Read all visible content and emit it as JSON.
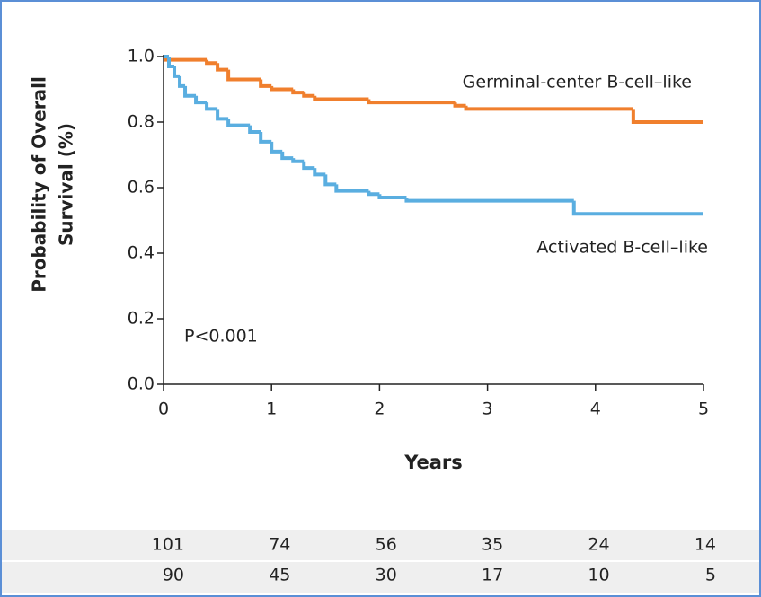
{
  "chart_data": {
    "type": "step",
    "ylabel": [
      "Probability of Overall",
      "Survival (%)"
    ],
    "xlabel": "Years",
    "annotation": "P<0.001",
    "xlim": [
      0,
      5
    ],
    "ylim": [
      0,
      1
    ],
    "xticks": [
      0,
      1,
      2,
      3,
      4,
      5
    ],
    "yticks": [
      {
        "value": 0,
        "label": "0.0"
      },
      0.2,
      0.4,
      0.6,
      0.8,
      {
        "value": 1,
        "label": "1.0"
      }
    ],
    "series": [
      {
        "name": "Germinal-center B-cell–like",
        "color": "#f07f2d",
        "x": [
          0,
          0.02,
          0.4,
          0.5,
          0.6,
          0.9,
          1.0,
          1.2,
          1.3,
          1.4,
          1.9,
          2.7,
          2.8,
          4.35
        ],
        "values": [
          1.0,
          0.99,
          0.98,
          0.96,
          0.93,
          0.91,
          0.9,
          0.89,
          0.88,
          0.87,
          0.86,
          0.85,
          0.84,
          0.8
        ]
      },
      {
        "name": "Activated B-cell–like",
        "color": "#5aaee0",
        "x": [
          0,
          0.05,
          0.1,
          0.15,
          0.2,
          0.3,
          0.4,
          0.5,
          0.6,
          0.8,
          0.9,
          1.0,
          1.1,
          1.2,
          1.3,
          1.4,
          1.5,
          1.6,
          1.9,
          2.0,
          2.25,
          3.8
        ],
        "values": [
          1.0,
          0.97,
          0.94,
          0.91,
          0.88,
          0.86,
          0.84,
          0.81,
          0.79,
          0.77,
          0.74,
          0.71,
          0.69,
          0.68,
          0.66,
          0.64,
          0.61,
          0.59,
          0.58,
          0.57,
          0.56,
          0.52
        ]
      }
    ],
    "risk_table": {
      "rows": [
        [
          101,
          74,
          56,
          35,
          24,
          14
        ],
        [
          90,
          45,
          30,
          17,
          10,
          5
        ]
      ]
    }
  }
}
